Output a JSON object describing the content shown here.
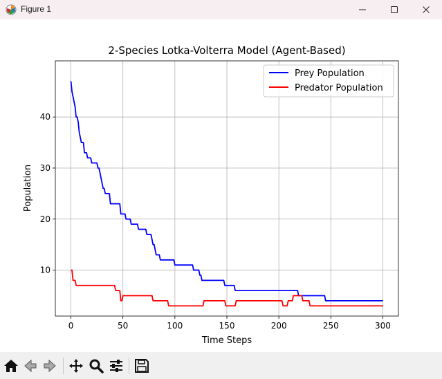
{
  "window": {
    "title": "Figure 1",
    "app_icon": "matplotlib-icon",
    "controls": [
      "minimize-icon",
      "maximize-icon",
      "close-icon"
    ]
  },
  "toolbar": {
    "buttons": [
      "home-icon",
      "back-icon",
      "forward-icon",
      "pan-icon",
      "zoom-icon",
      "configure-subplots-icon",
      "save-icon"
    ]
  },
  "chart_data": {
    "type": "line",
    "title": "2-Species Lotka-Volterra Model (Agent-Based)",
    "xlabel": "Time Steps",
    "ylabel": "Population",
    "xlim": [
      -15,
      315
    ],
    "ylim": [
      1,
      51
    ],
    "xticks": [
      0,
      50,
      100,
      150,
      200,
      250,
      300
    ],
    "yticks": [
      10,
      20,
      30,
      40
    ],
    "grid": true,
    "legend_position": "top-right",
    "series": [
      {
        "name": "Prey Population",
        "color": "#0000ff",
        "points": [
          [
            0,
            47
          ],
          [
            1,
            45
          ],
          [
            2,
            44
          ],
          [
            3,
            43
          ],
          [
            4,
            42
          ],
          [
            5,
            40
          ],
          [
            6,
            40
          ],
          [
            7,
            39
          ],
          [
            8,
            37
          ],
          [
            9,
            36
          ],
          [
            10,
            35
          ],
          [
            12,
            35
          ],
          [
            13,
            33
          ],
          [
            15,
            33
          ],
          [
            16,
            32
          ],
          [
            19,
            32
          ],
          [
            20,
            31
          ],
          [
            25,
            31
          ],
          [
            26,
            30
          ],
          [
            27,
            30
          ],
          [
            28,
            29
          ],
          [
            29,
            28
          ],
          [
            30,
            27
          ],
          [
            31,
            26
          ],
          [
            32,
            26
          ],
          [
            33,
            25
          ],
          [
            37,
            25
          ],
          [
            38,
            23
          ],
          [
            47,
            23
          ],
          [
            48,
            21
          ],
          [
            52,
            21
          ],
          [
            53,
            20
          ],
          [
            57,
            20
          ],
          [
            58,
            19
          ],
          [
            64,
            19
          ],
          [
            65,
            18
          ],
          [
            72,
            18
          ],
          [
            73,
            17
          ],
          [
            77,
            17
          ],
          [
            78,
            16
          ],
          [
            79,
            15
          ],
          [
            80,
            15
          ],
          [
            81,
            14
          ],
          [
            82,
            13
          ],
          [
            85,
            13
          ],
          [
            86,
            12
          ],
          [
            99,
            12
          ],
          [
            100,
            11
          ],
          [
            117,
            11
          ],
          [
            118,
            10
          ],
          [
            123,
            10
          ],
          [
            124,
            9
          ],
          [
            125,
            9
          ],
          [
            126,
            8
          ],
          [
            147,
            8
          ],
          [
            148,
            7
          ],
          [
            157,
            7
          ],
          [
            158,
            6
          ],
          [
            218,
            6
          ],
          [
            219,
            5
          ],
          [
            244,
            5
          ],
          [
            245,
            4
          ],
          [
            300,
            4
          ]
        ]
      },
      {
        "name": "Predator Population",
        "color": "#ff0000",
        "points": [
          [
            0,
            10
          ],
          [
            1,
            10
          ],
          [
            2,
            8
          ],
          [
            4,
            8
          ],
          [
            5,
            7
          ],
          [
            42,
            7
          ],
          [
            43,
            6
          ],
          [
            47,
            6
          ],
          [
            48,
            4
          ],
          [
            49,
            4
          ],
          [
            50,
            5
          ],
          [
            78,
            5
          ],
          [
            79,
            4
          ],
          [
            93,
            4
          ],
          [
            94,
            3
          ],
          [
            127,
            3
          ],
          [
            128,
            4
          ],
          [
            148,
            4
          ],
          [
            149,
            3
          ],
          [
            158,
            3
          ],
          [
            159,
            4
          ],
          [
            203,
            4
          ],
          [
            204,
            3
          ],
          [
            208,
            3
          ],
          [
            209,
            4
          ],
          [
            213,
            4
          ],
          [
            214,
            5
          ],
          [
            222,
            5
          ],
          [
            223,
            4
          ],
          [
            229,
            4
          ],
          [
            230,
            3
          ],
          [
            300,
            3
          ]
        ]
      }
    ]
  }
}
